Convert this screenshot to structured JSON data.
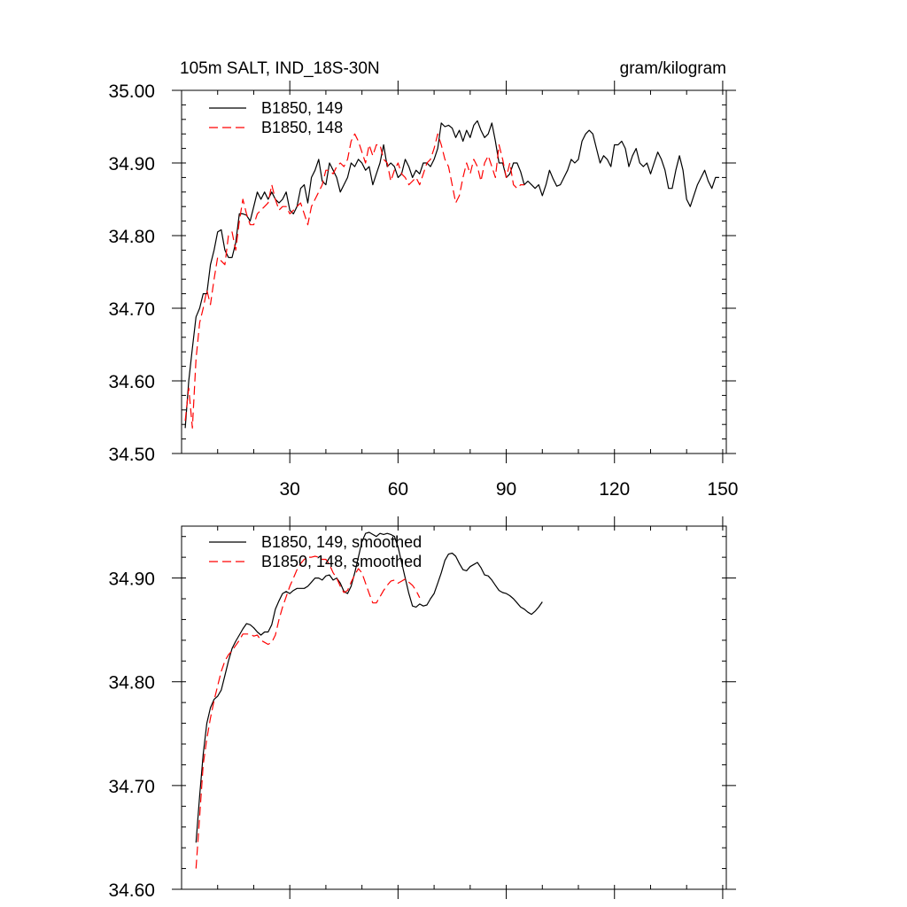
{
  "chart_data": [
    {
      "type": "line",
      "title_left": "105m SALT, IND_18S-30N",
      "title_right": "gram/kilogram",
      "xlim": [
        0,
        151
      ],
      "ylim": [
        34.5,
        35.0
      ],
      "xticks": [
        30,
        60,
        90,
        120,
        150
      ],
      "yticks": [
        34.5,
        34.6,
        34.7,
        34.8,
        34.9,
        35.0
      ],
      "ytick_labels": [
        "34.50",
        "34.60",
        "34.70",
        "34.80",
        "34.90",
        "35.00"
      ],
      "show_x_tick_labels": true,
      "grid": false,
      "legend_position": "top-left",
      "series": [
        {
          "name": "B1850, 149",
          "color": "#000000",
          "dash": "solid",
          "x_start": 1,
          "values": [
            34.535,
            34.6,
            34.645,
            34.688,
            34.7,
            34.72,
            34.72,
            34.76,
            34.78,
            34.805,
            34.808,
            34.78,
            34.77,
            34.77,
            34.79,
            34.83,
            34.83,
            34.828,
            34.82,
            34.84,
            34.86,
            34.85,
            34.86,
            34.85,
            34.86,
            34.85,
            34.845,
            34.85,
            34.86,
            34.835,
            34.83,
            34.84,
            34.865,
            34.87,
            34.845,
            34.88,
            34.89,
            34.905,
            34.875,
            34.87,
            34.9,
            34.89,
            34.88,
            34.86,
            34.87,
            34.88,
            34.9,
            34.895,
            34.905,
            34.9,
            34.89,
            34.895,
            34.87,
            34.885,
            34.9,
            34.925,
            34.895,
            34.9,
            34.895,
            34.88,
            34.885,
            34.905,
            34.895,
            34.88,
            34.89,
            34.885,
            34.9,
            34.9,
            34.895,
            34.905,
            34.92,
            34.955,
            34.95,
            34.952,
            34.948,
            34.935,
            34.945,
            34.93,
            34.945,
            34.935,
            34.952,
            34.958,
            34.945,
            34.935,
            34.94,
            34.955,
            34.93,
            34.9,
            34.9,
            34.88,
            34.885,
            34.9,
            34.9,
            34.888,
            34.87,
            34.875,
            34.87,
            34.865,
            34.87,
            34.855,
            34.87,
            34.89,
            34.878,
            34.868,
            34.87,
            34.88,
            34.89,
            34.905,
            34.9,
            34.905,
            34.93,
            34.94,
            34.945,
            34.94,
            34.92,
            34.9,
            34.91,
            34.905,
            34.895,
            34.925,
            34.925,
            34.93,
            34.92,
            34.895,
            34.91,
            34.92,
            34.9,
            34.895,
            34.9,
            34.885,
            34.9,
            34.915,
            34.905,
            34.89,
            34.865,
            34.865,
            34.89,
            34.91,
            34.89,
            34.85,
            34.84,
            34.855,
            34.87,
            34.88,
            34.89,
            34.875,
            34.865,
            34.88,
            34.88
          ]
        },
        {
          "name": "B1850, 148",
          "color": "#ff0000",
          "dash": "dashed",
          "x_start": 1,
          "values": [
            34.545,
            34.59,
            34.535,
            34.63,
            34.68,
            34.7,
            34.725,
            34.705,
            34.74,
            34.77,
            34.765,
            34.76,
            34.8,
            34.805,
            34.78,
            34.82,
            34.85,
            34.83,
            34.815,
            34.815,
            34.83,
            34.835,
            34.84,
            34.845,
            34.87,
            34.85,
            34.835,
            34.84,
            34.84,
            34.83,
            34.835,
            34.84,
            34.845,
            34.83,
            34.815,
            34.84,
            34.85,
            34.86,
            34.87,
            34.89,
            34.89,
            34.885,
            34.895,
            34.9,
            34.895,
            34.905,
            34.93,
            34.94,
            34.93,
            34.915,
            34.9,
            34.925,
            34.91,
            34.925,
            34.925,
            34.905,
            34.9,
            34.875,
            34.89,
            34.9,
            34.885,
            34.88,
            34.87,
            34.875,
            34.88,
            34.87,
            34.885,
            34.9,
            34.905,
            34.92,
            34.94,
            34.925,
            34.905,
            34.895,
            34.87,
            34.845,
            34.855,
            34.88,
            34.9,
            34.885,
            34.905,
            34.895,
            34.875,
            34.9,
            34.91,
            34.895,
            34.88,
            34.925,
            34.905,
            34.88,
            34.9,
            34.87,
            34.865,
            34.87,
            34.87
          ]
        }
      ]
    },
    {
      "type": "line",
      "xlim": [
        0,
        151
      ],
      "ylim": [
        34.6,
        34.95
      ],
      "xticks": [
        30,
        60,
        90,
        120,
        150
      ],
      "yticks": [
        34.6,
        34.7,
        34.8,
        34.9
      ],
      "ytick_labels": [
        "34.60",
        "34.70",
        "34.80",
        "34.90"
      ],
      "show_x_tick_labels": false,
      "grid": false,
      "legend_position": "top-left",
      "series": [
        {
          "name": "B1850, 149, smoothed",
          "color": "#000000",
          "dash": "solid",
          "x_start": 4,
          "values": [
            34.645,
            34.69,
            34.73,
            34.76,
            34.775,
            34.783,
            34.786,
            34.792,
            34.806,
            34.82,
            34.832,
            34.839,
            34.845,
            34.851,
            34.856,
            34.855,
            34.852,
            34.848,
            34.845,
            34.848,
            34.848,
            34.855,
            34.87,
            34.878,
            34.885,
            34.887,
            34.885,
            34.888,
            34.89,
            34.89,
            34.89,
            34.892,
            34.896,
            34.9,
            34.9,
            34.898,
            34.902,
            34.903,
            34.898,
            34.9,
            34.895,
            34.887,
            34.885,
            34.892,
            34.905,
            34.92,
            34.935,
            34.943,
            34.944,
            34.942,
            34.94,
            34.943,
            34.942,
            34.943,
            34.942,
            34.94,
            34.93,
            34.915,
            34.9,
            34.885,
            34.873,
            34.872,
            34.875,
            34.873,
            34.874,
            34.88,
            34.885,
            34.895,
            34.905,
            34.917,
            34.923,
            34.924,
            34.921,
            34.914,
            34.908,
            34.907,
            34.911,
            34.913,
            34.915,
            34.91,
            34.903,
            34.902,
            34.898,
            34.893,
            34.888,
            34.886,
            34.885,
            34.883,
            34.88,
            34.876,
            34.872,
            34.87,
            34.867,
            34.865,
            34.868,
            34.872,
            34.877
          ]
        },
        {
          "name": "B1850, 148, smoothed",
          "color": "#ff0000",
          "dash": "dashed",
          "x_start": 4,
          "values": [
            34.62,
            34.67,
            34.72,
            34.745,
            34.765,
            34.782,
            34.796,
            34.81,
            34.82,
            34.826,
            34.83,
            34.835,
            34.84,
            34.846,
            34.846,
            34.846,
            34.844,
            34.845,
            34.84,
            34.838,
            34.836,
            34.838,
            34.845,
            34.86,
            34.872,
            34.882,
            34.892,
            34.9,
            34.908,
            34.914,
            34.918,
            34.92,
            34.92,
            34.921,
            34.92,
            34.918,
            34.918,
            34.913,
            34.905,
            34.9,
            34.892,
            34.886,
            34.888,
            34.896,
            34.903,
            34.909,
            34.905,
            34.895,
            34.885,
            34.876,
            34.876,
            34.882,
            34.888,
            34.893,
            34.897,
            34.898,
            34.895,
            34.897,
            34.899,
            34.896,
            34.893,
            34.888,
            34.881
          ]
        }
      ]
    }
  ]
}
